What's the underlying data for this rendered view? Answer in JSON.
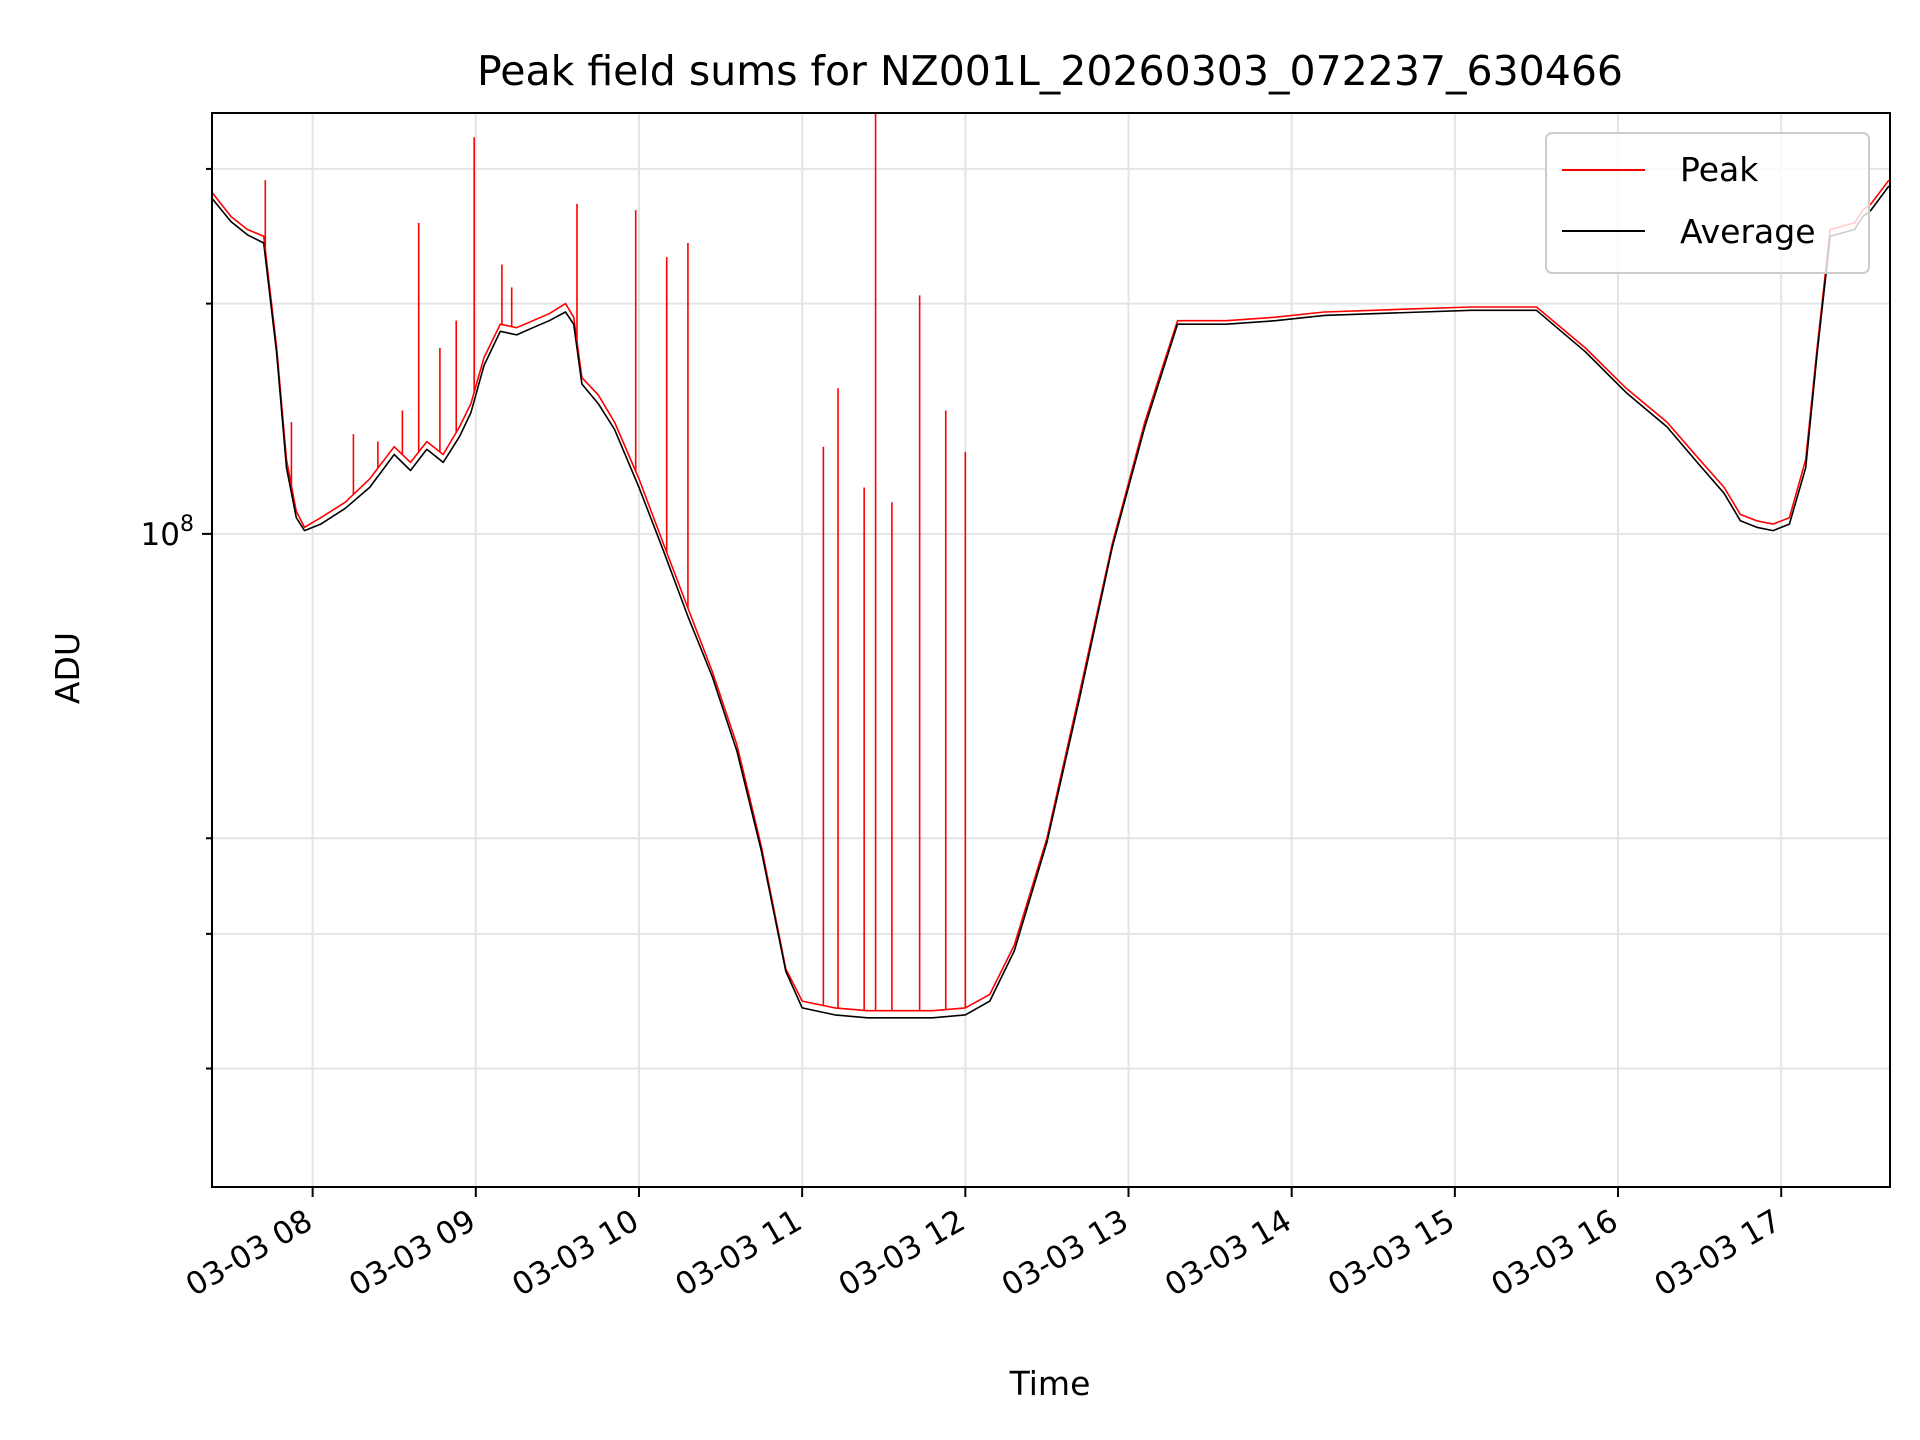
{
  "chart_data": {
    "type": "line",
    "title": "Peak field sums for NZ001L_20260303_072237_630466",
    "xlabel": "Time",
    "ylabel": "ADU",
    "y_scale": "log",
    "grid": true,
    "legend_position": "top-right",
    "x_ticks": [
      "03-03 08",
      "03-03 09",
      "03-03 10",
      "03-03 11",
      "03-03 12",
      "03-03 13",
      "03-03 14",
      "03-03 15",
      "03-03 16",
      "03-03 17"
    ],
    "x_tick_values": [
      8,
      9,
      10,
      11,
      12,
      13,
      14,
      15,
      16,
      17
    ],
    "y_tick_labels": [
      {
        "base": "10",
        "exp": "8",
        "value": 100000000
      }
    ],
    "xlim": [
      "03-03 07:23",
      "03-03 17:40"
    ],
    "ylim": [
      14000000,
      355000000
    ],
    "x_units": "hour of day 2026-03-03",
    "series": [
      {
        "name": "Peak",
        "color": "#ff0000",
        "x": [
          7.38,
          7.5,
          7.6,
          7.7,
          7.78,
          7.84,
          7.9,
          7.95,
          8.05,
          8.2,
          8.35,
          8.5,
          8.6,
          8.7,
          8.8,
          8.9,
          8.97,
          9.05,
          9.15,
          9.25,
          9.35,
          9.45,
          9.55,
          9.6,
          9.65,
          9.75,
          9.85,
          10.0,
          10.15,
          10.3,
          10.45,
          10.6,
          10.75,
          10.9,
          11.0,
          11.2,
          11.4,
          11.6,
          11.8,
          12.0,
          12.15,
          12.3,
          12.5,
          12.7,
          12.9,
          13.1,
          13.3,
          13.6,
          13.9,
          14.2,
          14.5,
          14.8,
          15.1,
          15.5,
          15.8,
          16.05,
          16.3,
          16.5,
          16.65,
          16.75,
          16.85,
          16.95,
          17.05,
          17.15,
          17.22,
          17.3,
          17.45,
          17.5,
          17.55,
          17.66
        ],
        "y": [
          280000000,
          260000000,
          250000000,
          245000000,
          175000000,
          125000000,
          107000000,
          102000000,
          105000000,
          110000000,
          118000000,
          130000000,
          124000000,
          132000000,
          127000000,
          138000000,
          148000000,
          170000000,
          188000000,
          186000000,
          190000000,
          194000000,
          200000000,
          192000000,
          160000000,
          152000000,
          140000000,
          118000000,
          97000000,
          80000000,
          66000000,
          53000000,
          39000000,
          27000000,
          24500000,
          24000000,
          23800000,
          23800000,
          23800000,
          24000000,
          25000000,
          29000000,
          40000000,
          62000000,
          97000000,
          140000000,
          190000000,
          190000000,
          192000000,
          195000000,
          196000000,
          197000000,
          198000000,
          198000000,
          175000000,
          155000000,
          140000000,
          125000000,
          115000000,
          106000000,
          104000000,
          103000000,
          105000000,
          125000000,
          175000000,
          250000000,
          255000000,
          265000000,
          270000000,
          290000000
        ]
      },
      {
        "name": "Average",
        "color": "#000000",
        "x": [
          7.38,
          7.5,
          7.6,
          7.7,
          7.78,
          7.84,
          7.9,
          7.95,
          8.05,
          8.2,
          8.35,
          8.5,
          8.6,
          8.7,
          8.8,
          8.9,
          8.97,
          9.05,
          9.15,
          9.25,
          9.35,
          9.45,
          9.55,
          9.6,
          9.65,
          9.75,
          9.85,
          10.0,
          10.15,
          10.3,
          10.45,
          10.6,
          10.75,
          10.9,
          11.0,
          11.2,
          11.4,
          11.6,
          11.8,
          12.0,
          12.15,
          12.3,
          12.5,
          12.7,
          12.9,
          13.1,
          13.3,
          13.6,
          13.9,
          14.2,
          14.5,
          14.8,
          15.1,
          15.5,
          15.8,
          16.05,
          16.3,
          16.5,
          16.65,
          16.75,
          16.85,
          16.95,
          17.05,
          17.15,
          17.22,
          17.3,
          17.45,
          17.5,
          17.55,
          17.66
        ],
        "y": [
          275000000,
          256000000,
          246000000,
          240000000,
          172000000,
          122000000,
          105000000,
          101000000,
          103000000,
          108000000,
          115000000,
          127000000,
          121000000,
          129000000,
          124000000,
          134000000,
          144000000,
          166000000,
          184000000,
          182000000,
          186000000,
          190000000,
          195000000,
          188000000,
          157000000,
          148000000,
          137000000,
          115000000,
          95000000,
          78000000,
          65000000,
          52000000,
          38500000,
          26800000,
          24000000,
          23500000,
          23300000,
          23300000,
          23300000,
          23500000,
          24500000,
          28500000,
          39500000,
          61000000,
          96000000,
          138000000,
          188000000,
          188000000,
          190000000,
          193000000,
          194000000,
          195000000,
          196000000,
          196000000,
          173000000,
          153000000,
          138000000,
          123000000,
          113000000,
          104000000,
          102000000,
          101000000,
          103000000,
          122000000,
          172000000,
          245000000,
          250000000,
          260000000,
          265000000,
          285000000
        ]
      }
    ],
    "peak_spikes": [
      {
        "x": 7.71,
        "y": 290000000
      },
      {
        "x": 7.87,
        "y": 140000000
      },
      {
        "x": 8.25,
        "y": 135000000
      },
      {
        "x": 8.4,
        "y": 132000000
      },
      {
        "x": 8.55,
        "y": 145000000
      },
      {
        "x": 8.65,
        "y": 255000000
      },
      {
        "x": 8.78,
        "y": 175000000
      },
      {
        "x": 8.88,
        "y": 190000000
      },
      {
        "x": 8.99,
        "y": 330000000
      },
      {
        "x": 9.16,
        "y": 225000000
      },
      {
        "x": 9.22,
        "y": 210000000
      },
      {
        "x": 9.62,
        "y": 270000000
      },
      {
        "x": 9.98,
        "y": 265000000
      },
      {
        "x": 10.17,
        "y": 230000000
      },
      {
        "x": 10.3,
        "y": 240000000
      },
      {
        "x": 11.13,
        "y": 130000000
      },
      {
        "x": 11.22,
        "y": 155000000
      },
      {
        "x": 11.38,
        "y": 115000000
      },
      {
        "x": 11.45,
        "y": 355000000
      },
      {
        "x": 11.55,
        "y": 110000000
      },
      {
        "x": 11.72,
        "y": 205000000
      },
      {
        "x": 11.88,
        "y": 145000000
      },
      {
        "x": 12.0,
        "y": 128000000
      }
    ]
  }
}
